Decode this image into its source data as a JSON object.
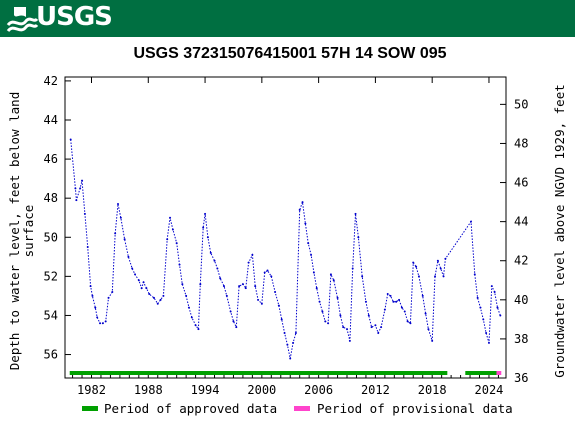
{
  "banner": {
    "logo_text": "USGS",
    "color": "#006f41"
  },
  "chart_data": {
    "type": "line",
    "title": "USGS 372315076415001 57H 14 SOW 095",
    "ylabel_left": [
      "Depth to water level, feet below land",
      "surface"
    ],
    "ylabel_right": "Groundwater level above NGVD 1929, feet",
    "xlim": [
      1979.2,
      2025.8
    ],
    "ylim_left": [
      57.2,
      41.8
    ],
    "ylim_right": [
      36,
      51.4
    ],
    "left_ticks": [
      42,
      44,
      46,
      48,
      50,
      52,
      54,
      56
    ],
    "right_ticks": [
      36,
      38,
      40,
      42,
      44,
      46,
      48,
      50
    ],
    "x_ticks": [
      1982,
      1988,
      1994,
      2000,
      2006,
      2012,
      2018,
      2024
    ],
    "series": [
      {
        "color": "#0000cc",
        "x": [
          1979.8,
          1980.3,
          1980.4,
          1980.8,
          1981.0,
          1981.3,
          1981.6,
          1981.9,
          1982.1,
          1982.4,
          1982.6,
          1982.9,
          1983.2,
          1983.5,
          1983.8,
          1984.2,
          1984.5,
          1984.8,
          1985.1,
          1985.5,
          1985.9,
          1986.3,
          1986.6,
          1987.0,
          1987.3,
          1987.5,
          1987.8,
          1988.1,
          1988.6,
          1989.0,
          1989.3,
          1989.6,
          1990.0,
          1990.3,
          1990.6,
          1991.0,
          1991.3,
          1991.6,
          1992.0,
          1992.3,
          1992.6,
          1993.0,
          1993.3,
          1993.5,
          1993.8,
          1994.0,
          1994.3,
          1994.6,
          1995.0,
          1995.3,
          1995.6,
          1996.0,
          1996.3,
          1996.7,
          1997.0,
          1997.3,
          1997.6,
          1998.0,
          1998.3,
          1998.6,
          1999.0,
          1999.3,
          1999.6,
          2000.0,
          2000.3,
          2000.6,
          2001.0,
          2001.4,
          2001.8,
          2002.1,
          2002.4,
          2002.7,
          2003.0,
          2003.3,
          2003.6,
          2004.0,
          2004.3,
          2004.6,
          2004.9,
          2005.2,
          2005.5,
          2005.8,
          2006.1,
          2006.4,
          2006.7,
          2007.0,
          2007.3,
          2007.6,
          2008.0,
          2008.3,
          2008.6,
          2009.0,
          2009.3,
          2009.6,
          2009.9,
          2010.2,
          2010.6,
          2011.0,
          2011.3,
          2011.6,
          2012.0,
          2012.3,
          2012.6,
          2013.0,
          2013.3,
          2013.6,
          2013.9,
          2014.2,
          2014.5,
          2014.8,
          2015.1,
          2015.4,
          2015.7,
          2016.0,
          2016.3,
          2016.6,
          2017.0,
          2017.3,
          2017.6,
          2018.0,
          2018.3,
          2018.6,
          2018.9,
          2019.2,
          2019.4,
          2022.1,
          2022.5,
          2022.8,
          2023.1,
          2023.4,
          2023.7,
          2024.0,
          2024.3,
          2024.6,
          2024.9,
          2025.2
        ],
        "y": [
          45.0,
          47.5,
          48.1,
          47.5,
          47.1,
          48.8,
          50.5,
          52.5,
          53.0,
          53.6,
          54.1,
          54.4,
          54.4,
          54.3,
          53.1,
          52.8,
          49.8,
          48.3,
          49.0,
          50.1,
          51.0,
          51.6,
          51.9,
          52.2,
          52.6,
          52.3,
          52.6,
          52.9,
          53.1,
          53.4,
          53.2,
          53.0,
          50.1,
          49.0,
          49.6,
          50.3,
          51.4,
          52.4,
          53.0,
          53.6,
          54.1,
          54.5,
          54.7,
          52.4,
          49.5,
          48.8,
          50.0,
          50.8,
          51.2,
          51.6,
          52.1,
          52.5,
          53.0,
          53.8,
          54.3,
          54.6,
          52.5,
          52.4,
          52.6,
          51.3,
          50.9,
          52.5,
          53.2,
          53.4,
          51.8,
          51.7,
          52.0,
          52.8,
          53.5,
          54.2,
          54.9,
          55.5,
          56.2,
          55.4,
          54.9,
          48.6,
          48.2,
          49.3,
          50.3,
          50.9,
          51.8,
          52.6,
          53.3,
          53.8,
          54.3,
          54.4,
          51.9,
          52.2,
          53.1,
          54.0,
          54.6,
          54.7,
          55.3,
          51.6,
          48.8,
          50.0,
          52.0,
          53.3,
          54.0,
          54.6,
          54.5,
          54.9,
          54.6,
          53.7,
          52.9,
          53.0,
          53.3,
          53.3,
          53.2,
          53.6,
          53.8,
          54.3,
          54.4,
          51.3,
          51.5,
          52.0,
          53.0,
          53.9,
          54.7,
          55.3,
          52.0,
          51.2,
          51.6,
          52.0,
          51.1,
          49.2,
          51.9,
          53.1,
          53.6,
          54.2,
          54.9,
          55.4,
          52.5,
          52.8,
          53.6,
          54.0
        ]
      }
    ],
    "legend": {
      "position": "bottom",
      "items": [
        {
          "label": "Period of approved data",
          "color": "#00a000"
        },
        {
          "label": "Period of provisional data",
          "color": "#ff44cc"
        }
      ]
    },
    "periods": [
      {
        "kind": "approved",
        "from": 1979.7,
        "to": 2019.6,
        "color": "#00a000"
      },
      {
        "kind": "approved",
        "from": 2021.5,
        "to": 2024.8,
        "color": "#00a000"
      },
      {
        "kind": "provisional",
        "from": 2024.8,
        "to": 2025.3,
        "color": "#ff44cc"
      }
    ]
  }
}
